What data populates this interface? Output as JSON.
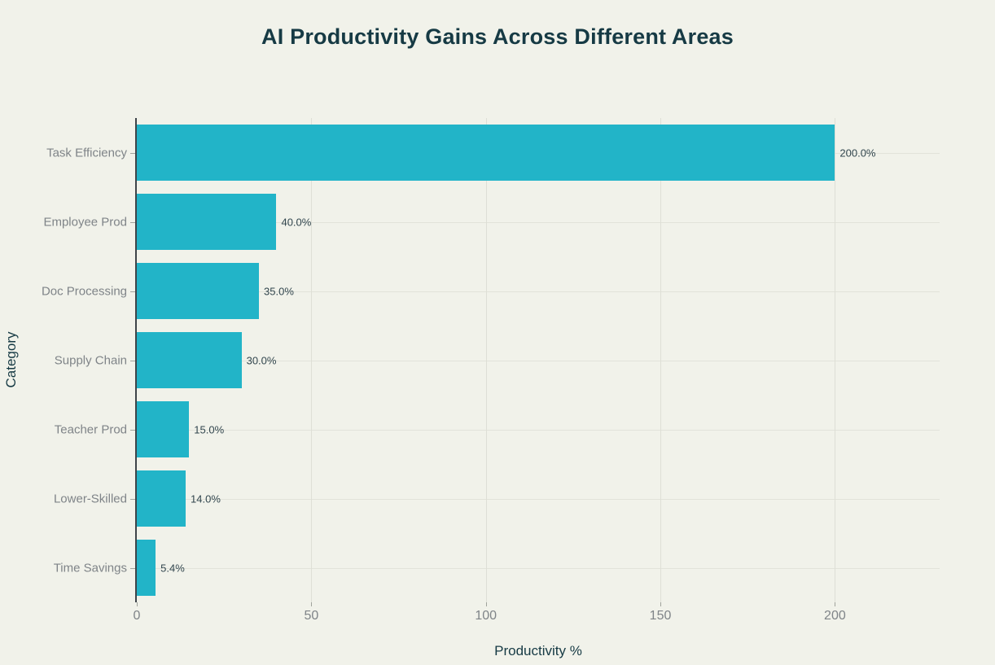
{
  "title": "AI Productivity Gains Across Different Areas",
  "chart_data": {
    "type": "bar",
    "orientation": "horizontal",
    "title": "AI Productivity Gains Across Different Areas",
    "categories": [
      "Task Efficiency",
      "Employee Prod",
      "Doc Processing",
      "Supply Chain",
      "Teacher Prod",
      "Lower-Skilled",
      "Time Savings"
    ],
    "values": [
      200.0,
      40.0,
      35.0,
      30.0,
      15.0,
      14.0,
      5.4
    ],
    "value_labels": [
      "200.0%",
      "40.0%",
      "35.0%",
      "30.0%",
      "15.0%",
      "14.0%",
      "5.4%"
    ],
    "xlabel": "Productivity %",
    "ylabel": "Category",
    "x_ticks": [
      0,
      50,
      100,
      150,
      200
    ],
    "xlim": [
      0,
      230
    ],
    "grid": true,
    "legend": false,
    "colors": {
      "bar": "#22b4c8",
      "background": "#f1f2ea",
      "title_text": "#163a44",
      "axis_title_text": "#163a44",
      "tick_label_text": "#7f8488",
      "value_label_text": "#32464e",
      "gridline": "#dedfd6",
      "axis_line": "#3e4449"
    }
  }
}
